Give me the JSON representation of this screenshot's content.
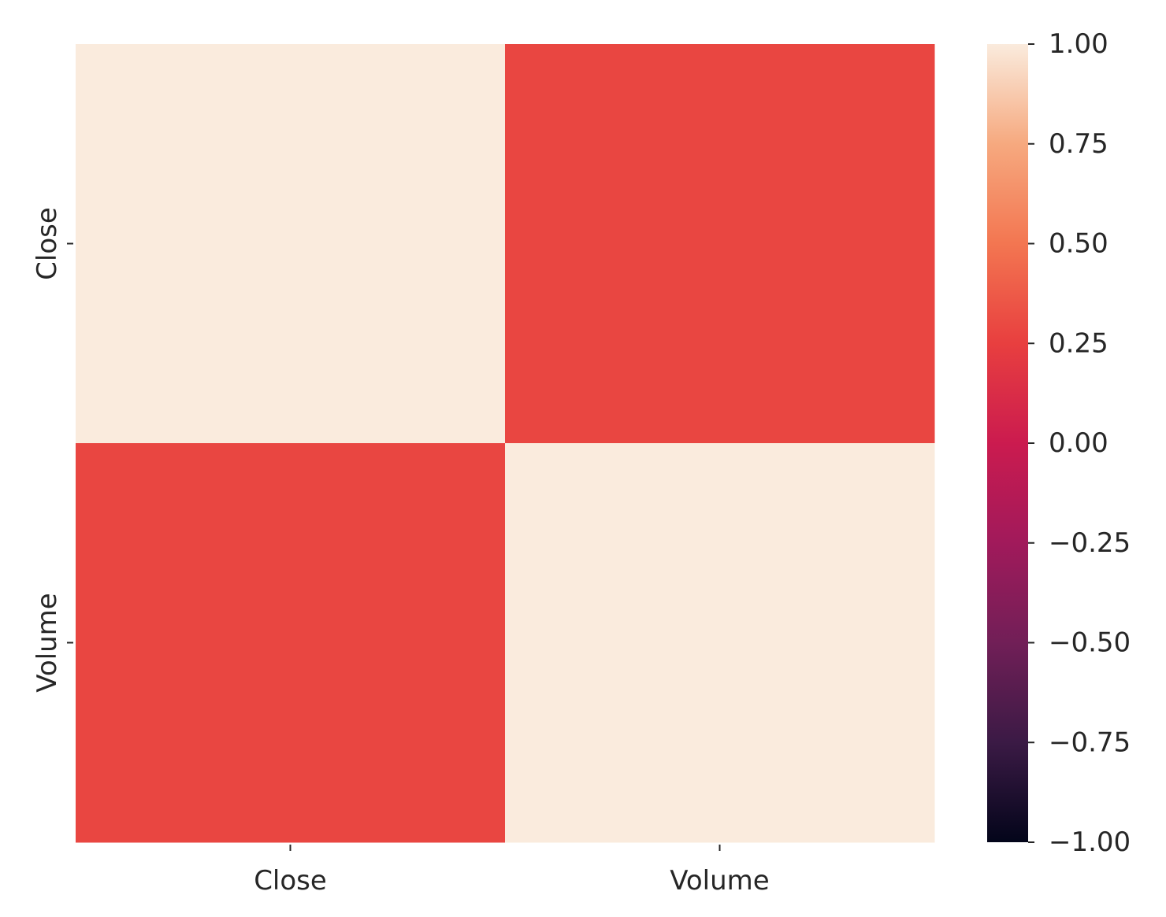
{
  "chart_data": {
    "type": "heatmap",
    "title": "",
    "xlabel": "",
    "ylabel": "",
    "x_labels": [
      "Close",
      "Volume"
    ],
    "y_labels": [
      "Close",
      "Volume"
    ],
    "values": [
      [
        1.0,
        0.28
      ],
      [
        0.28,
        1.0
      ]
    ],
    "colorbar": {
      "range": [
        -1.0,
        1.0
      ],
      "ticks": [
        1.0,
        0.75,
        0.5,
        0.25,
        0.0,
        -0.25,
        -0.5,
        -0.75,
        -1.0
      ],
      "tick_labels": [
        "1.00",
        "0.75",
        "0.50",
        "0.25",
        "0.00",
        "−0.25",
        "−0.50",
        "−0.75",
        "−1.00"
      ],
      "colormap": "rocket",
      "stops": [
        "#03051a",
        "#3b1a45",
        "#711f57",
        "#a11a5b",
        "#cb1b4f",
        "#e83f3f",
        "#f37651",
        "#f6a97f",
        "#faebdd"
      ]
    },
    "grid": false,
    "legend": "colorbar-right"
  }
}
